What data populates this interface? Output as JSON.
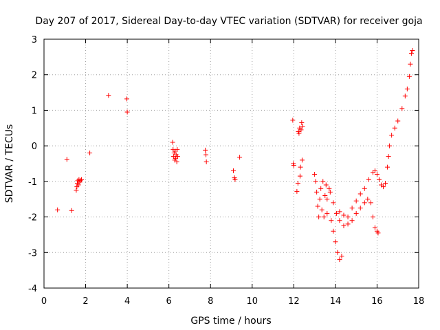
{
  "chart_data": {
    "type": "scatter",
    "title": "Day 207 of 2017, Sidereal Day-to-day VTEC variation (SDTVAR) for receiver goja",
    "xlabel": "GPS time / hours",
    "ylabel": "SDTVAR / TECUs",
    "xlim": [
      0,
      18
    ],
    "ylim": [
      -4,
      3
    ],
    "xticks": [
      "0",
      "2",
      "4",
      "6",
      "8",
      "10",
      "12",
      "14",
      "16",
      "18"
    ],
    "yticks": [
      "-4",
      "-3",
      "-2",
      "-1",
      "0",
      "1",
      "2",
      "3"
    ],
    "grid": true,
    "marker": "+",
    "color": "#ff0000",
    "series": [
      {
        "name": "SDTVAR",
        "points": [
          [
            0.65,
            -1.8
          ],
          [
            1.1,
            -0.38
          ],
          [
            1.33,
            -1.82
          ],
          [
            1.55,
            -1.25
          ],
          [
            1.58,
            -1.15
          ],
          [
            1.6,
            -1.05
          ],
          [
            1.62,
            -0.98
          ],
          [
            1.65,
            -1.1
          ],
          [
            1.68,
            -0.95
          ],
          [
            1.72,
            -1.02
          ],
          [
            1.75,
            -0.97
          ],
          [
            1.8,
            -0.95
          ],
          [
            2.2,
            -0.2
          ],
          [
            3.1,
            1.42
          ],
          [
            3.98,
            1.32
          ],
          [
            4.0,
            0.95
          ],
          [
            6.18,
            0.1
          ],
          [
            6.2,
            -0.1
          ],
          [
            6.22,
            -0.3
          ],
          [
            6.25,
            -0.2
          ],
          [
            6.28,
            -0.4
          ],
          [
            6.3,
            -0.15
          ],
          [
            6.32,
            -0.35
          ],
          [
            6.35,
            -0.25
          ],
          [
            6.38,
            -0.45
          ],
          [
            6.4,
            -0.1
          ],
          [
            6.42,
            -0.3
          ],
          [
            7.75,
            -0.12
          ],
          [
            7.78,
            -0.25
          ],
          [
            7.8,
            -0.45
          ],
          [
            9.1,
            -0.7
          ],
          [
            9.15,
            -0.9
          ],
          [
            9.18,
            -0.95
          ],
          [
            9.4,
            -0.32
          ],
          [
            11.95,
            0.72
          ],
          [
            11.98,
            -0.5
          ],
          [
            12.0,
            -0.55
          ],
          [
            12.15,
            -1.28
          ],
          [
            12.2,
            -1.05
          ],
          [
            12.22,
            0.4
          ],
          [
            12.25,
            0.35
          ],
          [
            12.28,
            0.5
          ],
          [
            12.3,
            -0.85
          ],
          [
            12.32,
            -0.6
          ],
          [
            12.35,
            0.45
          ],
          [
            12.38,
            0.65
          ],
          [
            12.4,
            -0.4
          ],
          [
            12.42,
            0.55
          ],
          [
            13.0,
            -0.8
          ],
          [
            13.05,
            -1.0
          ],
          [
            13.1,
            -1.3
          ],
          [
            13.15,
            -1.7
          ],
          [
            13.2,
            -2.0
          ],
          [
            13.25,
            -1.5
          ],
          [
            13.3,
            -1.2
          ],
          [
            13.35,
            -1.8
          ],
          [
            13.4,
            -1.0
          ],
          [
            13.45,
            -2.0
          ],
          [
            13.5,
            -1.4
          ],
          [
            13.55,
            -1.1
          ],
          [
            13.6,
            -1.9
          ],
          [
            13.7,
            -1.2
          ],
          [
            13.8,
            -2.1
          ],
          [
            13.9,
            -2.4
          ],
          [
            14.0,
            -2.7
          ],
          [
            14.1,
            -3.0
          ],
          [
            14.2,
            -3.2
          ],
          [
            14.3,
            -3.1
          ],
          [
            13.6,
            -1.5
          ],
          [
            13.75,
            -1.3
          ],
          [
            13.9,
            -1.6
          ],
          [
            14.05,
            -1.9
          ],
          [
            14.2,
            -2.1
          ],
          [
            14.4,
            -2.25
          ],
          [
            14.6,
            -2.2
          ],
          [
            14.8,
            -2.1
          ],
          [
            15.0,
            -1.9
          ],
          [
            15.2,
            -1.75
          ],
          [
            15.4,
            -1.6
          ],
          [
            15.55,
            -1.5
          ],
          [
            15.7,
            -1.6
          ],
          [
            15.8,
            -2.0
          ],
          [
            15.9,
            -2.3
          ],
          [
            16.0,
            -2.4
          ],
          [
            16.05,
            -2.45
          ],
          [
            14.2,
            -1.85
          ],
          [
            14.4,
            -1.95
          ],
          [
            14.6,
            -2.0
          ],
          [
            14.8,
            -1.75
          ],
          [
            15.0,
            -1.55
          ],
          [
            15.2,
            -1.35
          ],
          [
            15.4,
            -1.2
          ],
          [
            15.6,
            -0.95
          ],
          [
            15.8,
            -0.75
          ],
          [
            15.9,
            -0.7
          ],
          [
            16.0,
            -0.8
          ],
          [
            16.1,
            -0.95
          ],
          [
            16.2,
            -1.1
          ],
          [
            16.3,
            -1.15
          ],
          [
            16.4,
            -1.05
          ],
          [
            16.5,
            -0.6
          ],
          [
            16.55,
            -0.3
          ],
          [
            16.6,
            0.0
          ],
          [
            16.7,
            0.3
          ],
          [
            16.85,
            0.5
          ],
          [
            17.0,
            0.7
          ],
          [
            17.2,
            1.05
          ],
          [
            17.35,
            1.4
          ],
          [
            17.45,
            1.6
          ],
          [
            17.55,
            1.95
          ],
          [
            17.6,
            2.3
          ],
          [
            17.65,
            2.6
          ],
          [
            17.7,
            2.68
          ]
        ]
      }
    ]
  }
}
